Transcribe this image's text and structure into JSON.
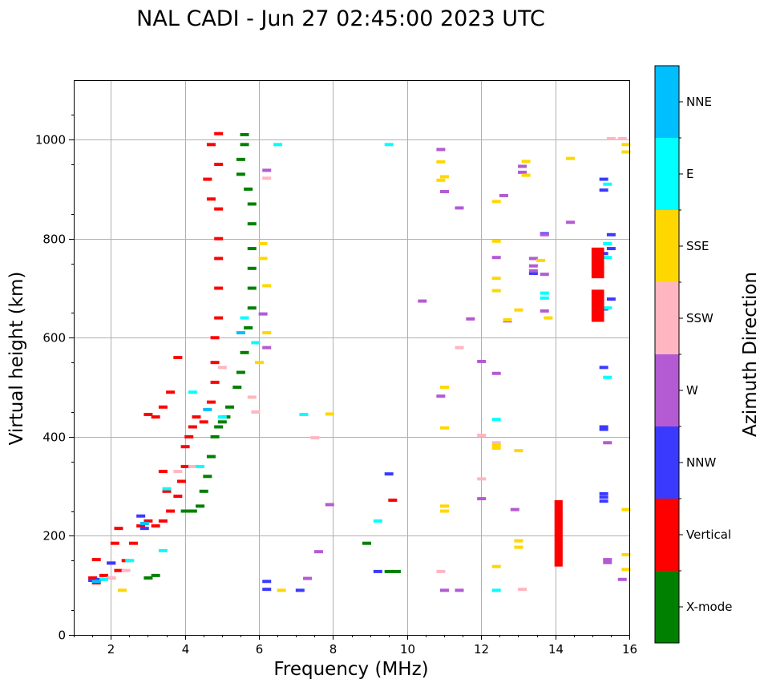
{
  "chart_data": {
    "type": "scatter",
    "title": "NAL CADI - Jun 27 02:45:00 2023 UTC",
    "xlabel": "Frequency (MHz)",
    "ylabel": "Virtual height (km)",
    "xlim": [
      1,
      16
    ],
    "ylim": [
      0,
      1120
    ],
    "xticks": [
      "2",
      "4",
      "6",
      "8",
      "10",
      "12",
      "14",
      "16"
    ],
    "yticks": [
      "0",
      "200",
      "400",
      "600",
      "800",
      "1000"
    ],
    "grid": true,
    "colorbar": {
      "label": "Azimuth Direction",
      "categories": [
        "X-mode",
        "Vertical",
        "NNW",
        "W",
        "SSW",
        "SSE",
        "E",
        "NNE"
      ],
      "colors": [
        "#008000",
        "#ff0000",
        "#3a3aff",
        "#b45ad2",
        "#ffb6c1",
        "#ffd700",
        "#00ffff",
        "#00bfff"
      ]
    },
    "series": [
      {
        "name": "Vertical",
        "color": "#ff0000",
        "points": [
          [
            1.5,
            115
          ],
          [
            1.6,
            105
          ],
          [
            1.8,
            120
          ],
          [
            2.0,
            115
          ],
          [
            2.2,
            130
          ],
          [
            2.4,
            150
          ],
          [
            2.6,
            185
          ],
          [
            2.8,
            220
          ],
          [
            3.0,
            230
          ],
          [
            3.2,
            220
          ],
          [
            3.4,
            230
          ],
          [
            3.6,
            250
          ],
          [
            3.8,
            280
          ],
          [
            3.9,
            310
          ],
          [
            4.0,
            340
          ],
          [
            4.0,
            380
          ],
          [
            4.1,
            400
          ],
          [
            4.2,
            420
          ],
          [
            4.3,
            440
          ],
          [
            4.5,
            430
          ],
          [
            4.7,
            470
          ],
          [
            4.8,
            510
          ],
          [
            4.8,
            550
          ],
          [
            4.8,
            600
          ],
          [
            4.9,
            640
          ],
          [
            4.9,
            700
          ],
          [
            4.9,
            760
          ],
          [
            4.9,
            800
          ],
          [
            4.9,
            860
          ],
          [
            4.7,
            880
          ],
          [
            4.6,
            920
          ],
          [
            4.9,
            950
          ],
          [
            4.7,
            990
          ],
          [
            4.9,
            1012
          ],
          [
            3.0,
            445
          ],
          [
            3.2,
            440
          ],
          [
            3.4,
            460
          ],
          [
            3.6,
            490
          ],
          [
            3.8,
            560
          ],
          [
            3.4,
            330
          ],
          [
            3.5,
            290
          ],
          [
            2.2,
            215
          ],
          [
            2.1,
            185
          ],
          [
            2.0,
            145
          ],
          [
            1.6,
            152
          ],
          [
            9.6,
            272
          ]
        ]
      },
      {
        "name": "X-mode",
        "color": "#008000",
        "points": [
          [
            3.0,
            115
          ],
          [
            3.2,
            120
          ],
          [
            4.0,
            250
          ],
          [
            4.2,
            250
          ],
          [
            4.4,
            260
          ],
          [
            4.5,
            290
          ],
          [
            4.6,
            320
          ],
          [
            4.7,
            360
          ],
          [
            4.8,
            400
          ],
          [
            4.9,
            420
          ],
          [
            5.0,
            430
          ],
          [
            5.1,
            440
          ],
          [
            5.2,
            460
          ],
          [
            5.4,
            500
          ],
          [
            5.5,
            530
          ],
          [
            5.6,
            570
          ],
          [
            5.7,
            620
          ],
          [
            5.8,
            660
          ],
          [
            5.8,
            700
          ],
          [
            5.8,
            740
          ],
          [
            5.8,
            780
          ],
          [
            5.8,
            830
          ],
          [
            5.8,
            870
          ],
          [
            5.7,
            900
          ],
          [
            5.5,
            930
          ],
          [
            5.5,
            960
          ],
          [
            5.6,
            990
          ],
          [
            5.6,
            1010
          ],
          [
            8.9,
            185
          ],
          [
            9.5,
            128
          ],
          [
            9.7,
            128
          ]
        ]
      },
      {
        "name": "NNW",
        "color": "#3a3aff",
        "points": [
          [
            1.5,
            110
          ],
          [
            1.7,
            112
          ],
          [
            2.0,
            145
          ],
          [
            2.8,
            240
          ],
          [
            2.9,
            215
          ],
          [
            9.2,
            128
          ],
          [
            9.5,
            325
          ],
          [
            15.3,
            920
          ],
          [
            15.3,
            898
          ],
          [
            15.5,
            808
          ],
          [
            15.5,
            780
          ],
          [
            15.3,
            770
          ],
          [
            15.5,
            678
          ],
          [
            15.3,
            658
          ],
          [
            15.3,
            540
          ],
          [
            15.3,
            420
          ],
          [
            15.3,
            415
          ],
          [
            15.3,
            285
          ],
          [
            15.3,
            278
          ],
          [
            15.3,
            270
          ],
          [
            6.2,
            108
          ],
          [
            6.2,
            92
          ],
          [
            7.1,
            90
          ],
          [
            13.4,
            730
          ],
          [
            13.7,
            810
          ]
        ]
      },
      {
        "name": "W",
        "color": "#b45ad2",
        "points": [
          [
            6.2,
            938
          ],
          [
            6.1,
            648
          ],
          [
            6.2,
            580
          ],
          [
            7.6,
            168
          ],
          [
            7.9,
            263
          ],
          [
            7.3,
            114
          ],
          [
            10.4,
            674
          ],
          [
            10.9,
            980
          ],
          [
            10.9,
            482
          ],
          [
            11.0,
            895
          ],
          [
            11.4,
            862
          ],
          [
            11.7,
            638
          ],
          [
            12.0,
            552
          ],
          [
            12.0,
            275
          ],
          [
            12.4,
            762
          ],
          [
            12.4,
            528
          ],
          [
            12.6,
            887
          ],
          [
            12.7,
            634
          ],
          [
            13.1,
            946
          ],
          [
            13.1,
            934
          ],
          [
            13.4,
            760
          ],
          [
            13.4,
            745
          ],
          [
            13.4,
            735
          ],
          [
            13.7,
            728
          ],
          [
            13.7,
            654
          ],
          [
            13.7,
            808
          ],
          [
            14.4,
            833
          ],
          [
            15.4,
            388
          ],
          [
            15.4,
            152
          ],
          [
            15.4,
            146
          ],
          [
            15.8,
            112
          ],
          [
            12.9,
            253
          ],
          [
            11.0,
            90
          ],
          [
            11.4,
            90
          ]
        ]
      },
      {
        "name": "SSW",
        "color": "#ffb6c1",
        "points": [
          [
            2.0,
            115
          ],
          [
            2.4,
            130
          ],
          [
            3.8,
            330
          ],
          [
            4.2,
            340
          ],
          [
            5.0,
            540
          ],
          [
            5.8,
            480
          ],
          [
            5.9,
            450
          ],
          [
            6.2,
            922
          ],
          [
            7.5,
            398
          ],
          [
            10.9,
            128
          ],
          [
            11.4,
            580
          ],
          [
            12.0,
            403
          ],
          [
            12.0,
            315
          ],
          [
            12.4,
            388
          ],
          [
            13.1,
            92
          ],
          [
            15.5,
            1002
          ],
          [
            15.8,
            1002
          ]
        ]
      },
      {
        "name": "SSE",
        "color": "#ffd700",
        "points": [
          [
            2.3,
            90
          ],
          [
            6.1,
            790
          ],
          [
            6.1,
            760
          ],
          [
            6.2,
            705
          ],
          [
            6.2,
            610
          ],
          [
            6.0,
            550
          ],
          [
            6.6,
            90
          ],
          [
            7.9,
            446
          ],
          [
            10.9,
            955
          ],
          [
            10.9,
            918
          ],
          [
            11.0,
            925
          ],
          [
            11.0,
            500
          ],
          [
            11.0,
            418
          ],
          [
            11.0,
            260
          ],
          [
            11.0,
            250
          ],
          [
            12.4,
            875
          ],
          [
            12.4,
            795
          ],
          [
            12.4,
            720
          ],
          [
            12.4,
            695
          ],
          [
            12.4,
            383
          ],
          [
            12.4,
            377
          ],
          [
            12.4,
            138
          ],
          [
            12.7,
            636
          ],
          [
            13.0,
            656
          ],
          [
            13.0,
            372
          ],
          [
            13.0,
            190
          ],
          [
            13.0,
            177
          ],
          [
            13.2,
            956
          ],
          [
            13.2,
            928
          ],
          [
            13.6,
            756
          ],
          [
            13.8,
            640
          ],
          [
            14.4,
            962
          ],
          [
            15.9,
            990
          ],
          [
            15.9,
            975
          ],
          [
            15.9,
            253
          ],
          [
            15.9,
            162
          ],
          [
            15.9,
            132
          ]
        ]
      },
      {
        "name": "E",
        "color": "#00ffff",
        "points": [
          [
            1.8,
            112
          ],
          [
            2.5,
            150
          ],
          [
            3.4,
            170
          ],
          [
            3.5,
            295
          ],
          [
            4.2,
            490
          ],
          [
            4.4,
            340
          ],
          [
            5.6,
            640
          ],
          [
            5.9,
            590
          ],
          [
            6.5,
            990
          ],
          [
            7.2,
            445
          ],
          [
            9.2,
            230
          ],
          [
            9.5,
            990
          ],
          [
            12.4,
            435
          ],
          [
            12.4,
            90
          ],
          [
            13.7,
            690
          ],
          [
            13.7,
            680
          ],
          [
            15.4,
            910
          ],
          [
            15.4,
            790
          ],
          [
            15.4,
            762
          ],
          [
            15.4,
            520
          ],
          [
            15.4,
            660
          ],
          [
            5.0,
            440
          ]
        ]
      },
      {
        "name": "NNE",
        "color": "#00bfff",
        "points": [
          [
            1.6,
            108
          ],
          [
            2.9,
            225
          ],
          [
            4.6,
            455
          ],
          [
            5.5,
            610
          ]
        ]
      }
    ],
    "blocks": [
      {
        "series": "Vertical",
        "x": [
          14.98,
          15.32
        ],
        "y": [
          720,
          782
        ]
      },
      {
        "series": "Vertical",
        "x": [
          14.98,
          15.32
        ],
        "y": [
          632,
          697
        ]
      },
      {
        "series": "Vertical",
        "x": [
          13.98,
          14.2
        ],
        "y": [
          138,
          272
        ]
      }
    ]
  }
}
